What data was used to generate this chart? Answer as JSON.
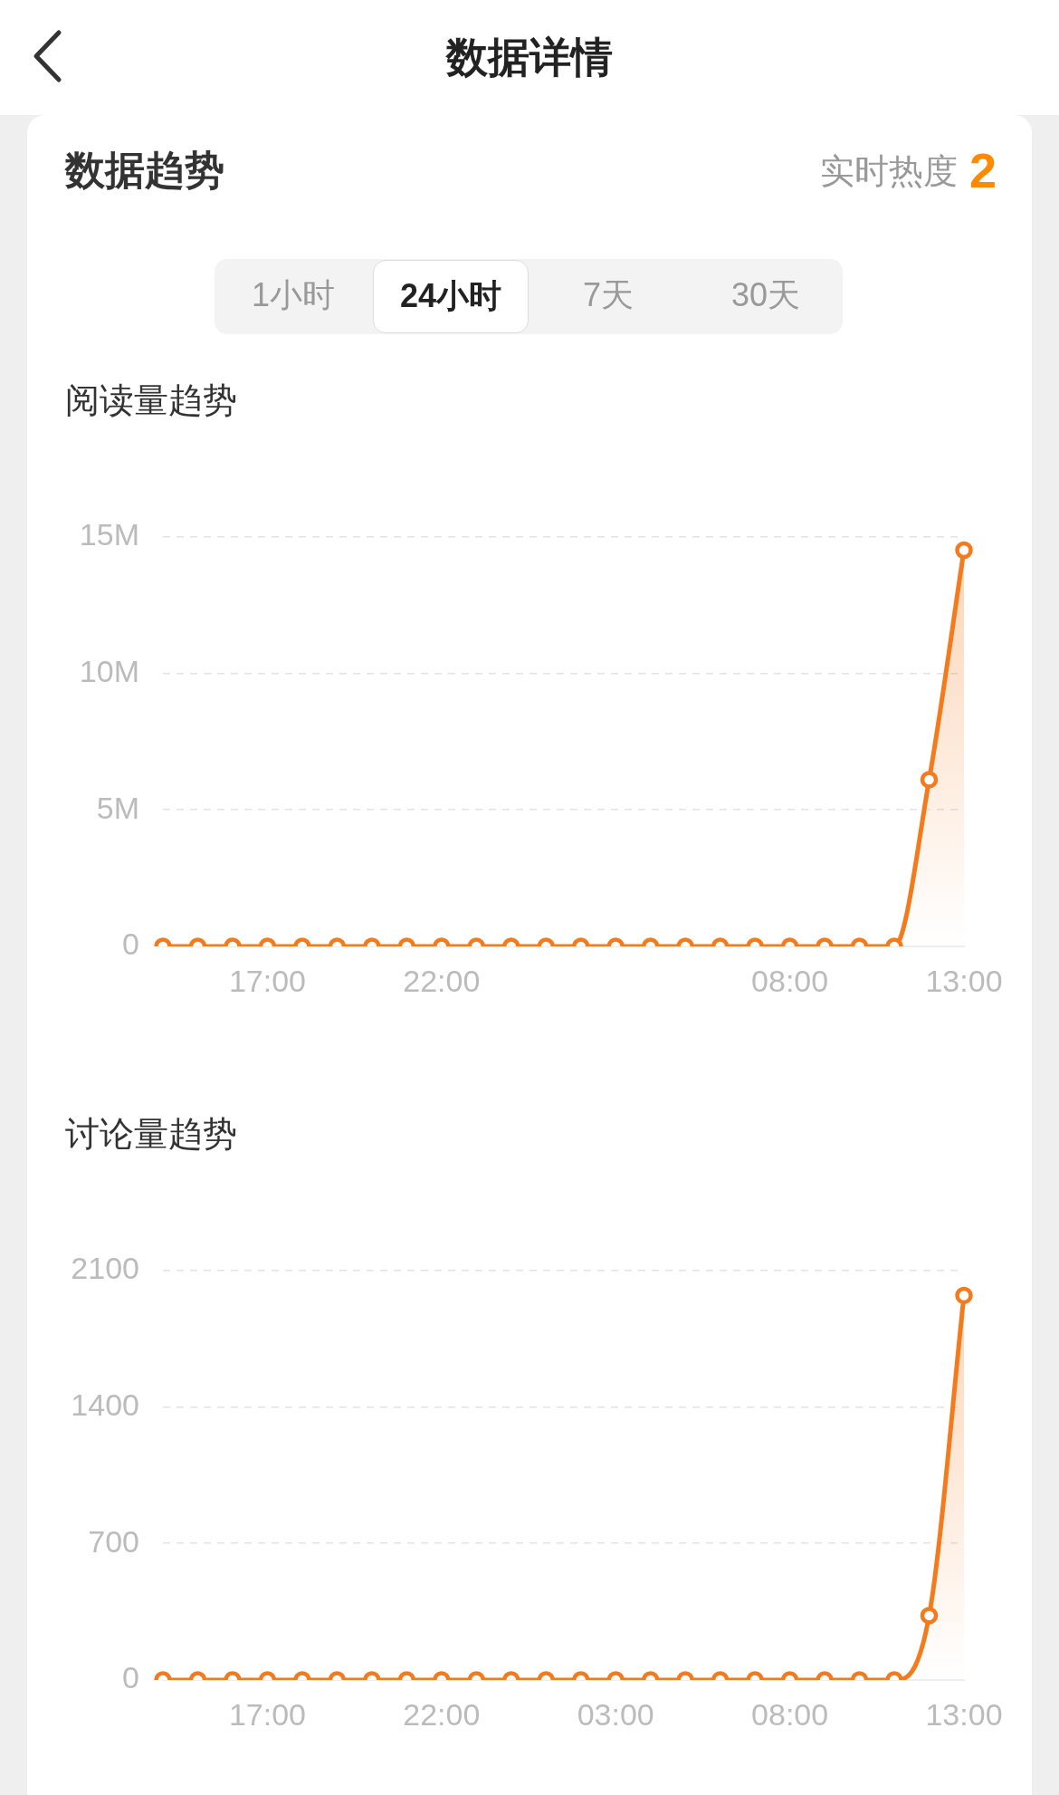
{
  "chart_data": [
    {
      "type": "other",
      "title": "数据详情",
      "subtitle": "数据趋势",
      "annotations": [
        "实时热度",
        "2",
        "1小时",
        "24小时",
        "7天",
        "30天"
      ]
    },
    {
      "type": "area",
      "title": "阅读量趋势",
      "categories": [
        null,
        null,
        null,
        "17:00",
        null,
        null,
        null,
        null,
        "22:00",
        null,
        null,
        null,
        null,
        null,
        null,
        null,
        null,
        null,
        "08:00",
        null,
        null,
        null,
        null,
        "13:00"
      ],
      "series": [
        {
          "color": "#f37b1d",
          "values": [
            0,
            0,
            0,
            0,
            0,
            0,
            0,
            0,
            0,
            0,
            0,
            0,
            0,
            0,
            0,
            0,
            0,
            0,
            0,
            0,
            0,
            0,
            6.1,
            14.5
          ]
        }
      ],
      "ylim": [
        0,
        15
      ],
      "yticks": [
        0,
        {
          "value": 5,
          "label": "5M"
        },
        {
          "value": 10,
          "label": "10M"
        },
        {
          "value": 15,
          "label": "15M"
        }
      ],
      "grid": "y",
      "marker": "circle"
    },
    {
      "type": "area",
      "title": "讨论量趋势",
      "categories": [
        null,
        null,
        null,
        "17:00",
        null,
        null,
        null,
        null,
        "22:00",
        null,
        null,
        null,
        null,
        "03:00",
        null,
        null,
        null,
        null,
        "08:00",
        null,
        null,
        null,
        null,
        "13:00"
      ],
      "series": [
        {
          "color": "#f37b1d",
          "values": [
            0,
            0,
            0,
            0,
            0,
            0,
            0,
            0,
            0,
            0,
            0,
            0,
            0,
            0,
            0,
            0,
            0,
            0,
            0,
            0,
            0,
            0,
            330,
            1970
          ]
        }
      ],
      "ylim": [
        0,
        2100
      ],
      "yticks": [
        0,
        700,
        1400,
        2100
      ],
      "grid": "y",
      "marker": "circle"
    }
  ]
}
